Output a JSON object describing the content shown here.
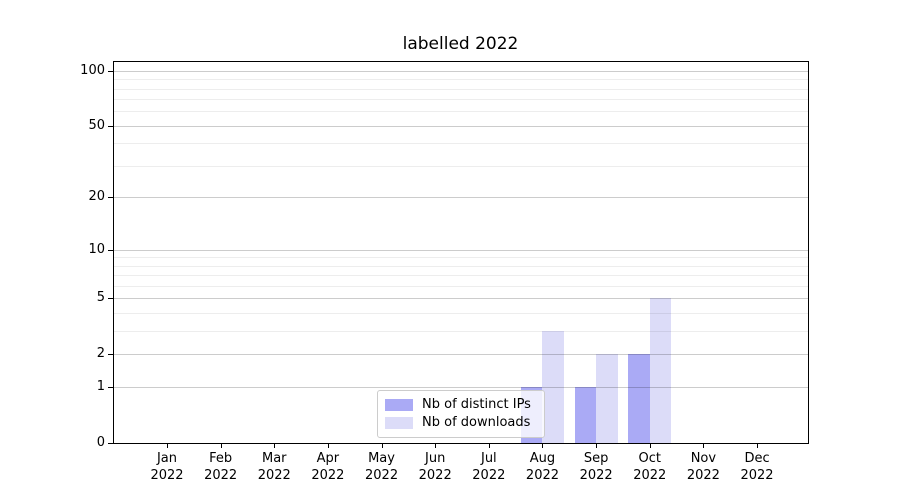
{
  "figure": {
    "title": "labelled 2022"
  },
  "chart_data": {
    "type": "bar",
    "title": "labelled 2022",
    "categories": [
      "Jan",
      "Feb",
      "Mar",
      "Apr",
      "May",
      "Jun",
      "Jul",
      "Aug",
      "Sep",
      "Oct",
      "Nov",
      "Dec"
    ],
    "category_year": "2022",
    "series": [
      {
        "name": "Nb of distinct IPs",
        "color": "#aaaaf5",
        "values": [
          0,
          0,
          0,
          0,
          0,
          0,
          0,
          1,
          1,
          2,
          0,
          0
        ]
      },
      {
        "name": "Nb of downloads",
        "color": "#dcdcf8",
        "values": [
          0,
          0,
          0,
          0,
          0,
          0,
          0,
          3,
          2,
          5,
          0,
          0
        ]
      }
    ],
    "yaxis": {
      "scale": "log1p",
      "ticks": [
        0,
        1,
        2,
        5,
        10,
        20,
        50,
        100
      ],
      "minor_ticks": [
        3,
        4,
        6,
        7,
        8,
        9,
        30,
        40,
        60,
        70,
        80,
        90
      ],
      "ylim": [
        0,
        113
      ]
    },
    "legend": {
      "location": "lower center"
    },
    "grid": {
      "major_color": "#cccccc",
      "minor_color": "#ebebeb"
    }
  }
}
